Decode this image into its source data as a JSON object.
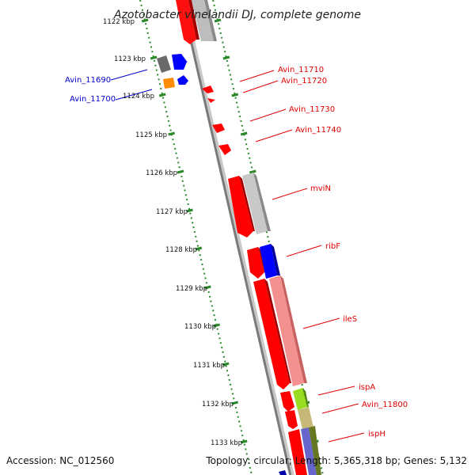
{
  "title": "Azotobacter vinelandii DJ, complete genome",
  "footer": {
    "accession": "Accession: NC_012560",
    "topology": "Topology: circular; Length: 5,365,318 bp; Genes: 5,132"
  },
  "colors": {
    "forward_gene": "#ff0000",
    "reverse_gene": "#0000ff",
    "scale_ticks": "#2a8a2a",
    "backbone": "#7a7a7a",
    "label_forward": "#e00000",
    "label_reverse": "#0000cc"
  },
  "kbp_ticks": [
    "1122 kbp",
    "1123 kbp",
    "1124 kbp",
    "1125 kbp",
    "1126 kbp",
    "1127 kbp",
    "1128 kbp",
    "1129 kbp",
    "1130 kbp",
    "1131 kbp",
    "1132 kbp",
    "1133 kbp"
  ],
  "gene_labels": [
    {
      "text": "Avin_11690",
      "side": "left"
    },
    {
      "text": "Avin_11700",
      "side": "left"
    },
    {
      "text": "Avin_11710",
      "side": "right"
    },
    {
      "text": "Avin_11720",
      "side": "right"
    },
    {
      "text": "Avin_11730",
      "side": "right"
    },
    {
      "text": "Avin_11740",
      "side": "right"
    },
    {
      "text": "mviN",
      "side": "right"
    },
    {
      "text": "ribF",
      "side": "right"
    },
    {
      "text": "ileS",
      "side": "right"
    },
    {
      "text": "ispA",
      "side": "right"
    },
    {
      "text": "Avin_11800",
      "side": "right"
    },
    {
      "text": "ispH",
      "side": "right"
    }
  ]
}
